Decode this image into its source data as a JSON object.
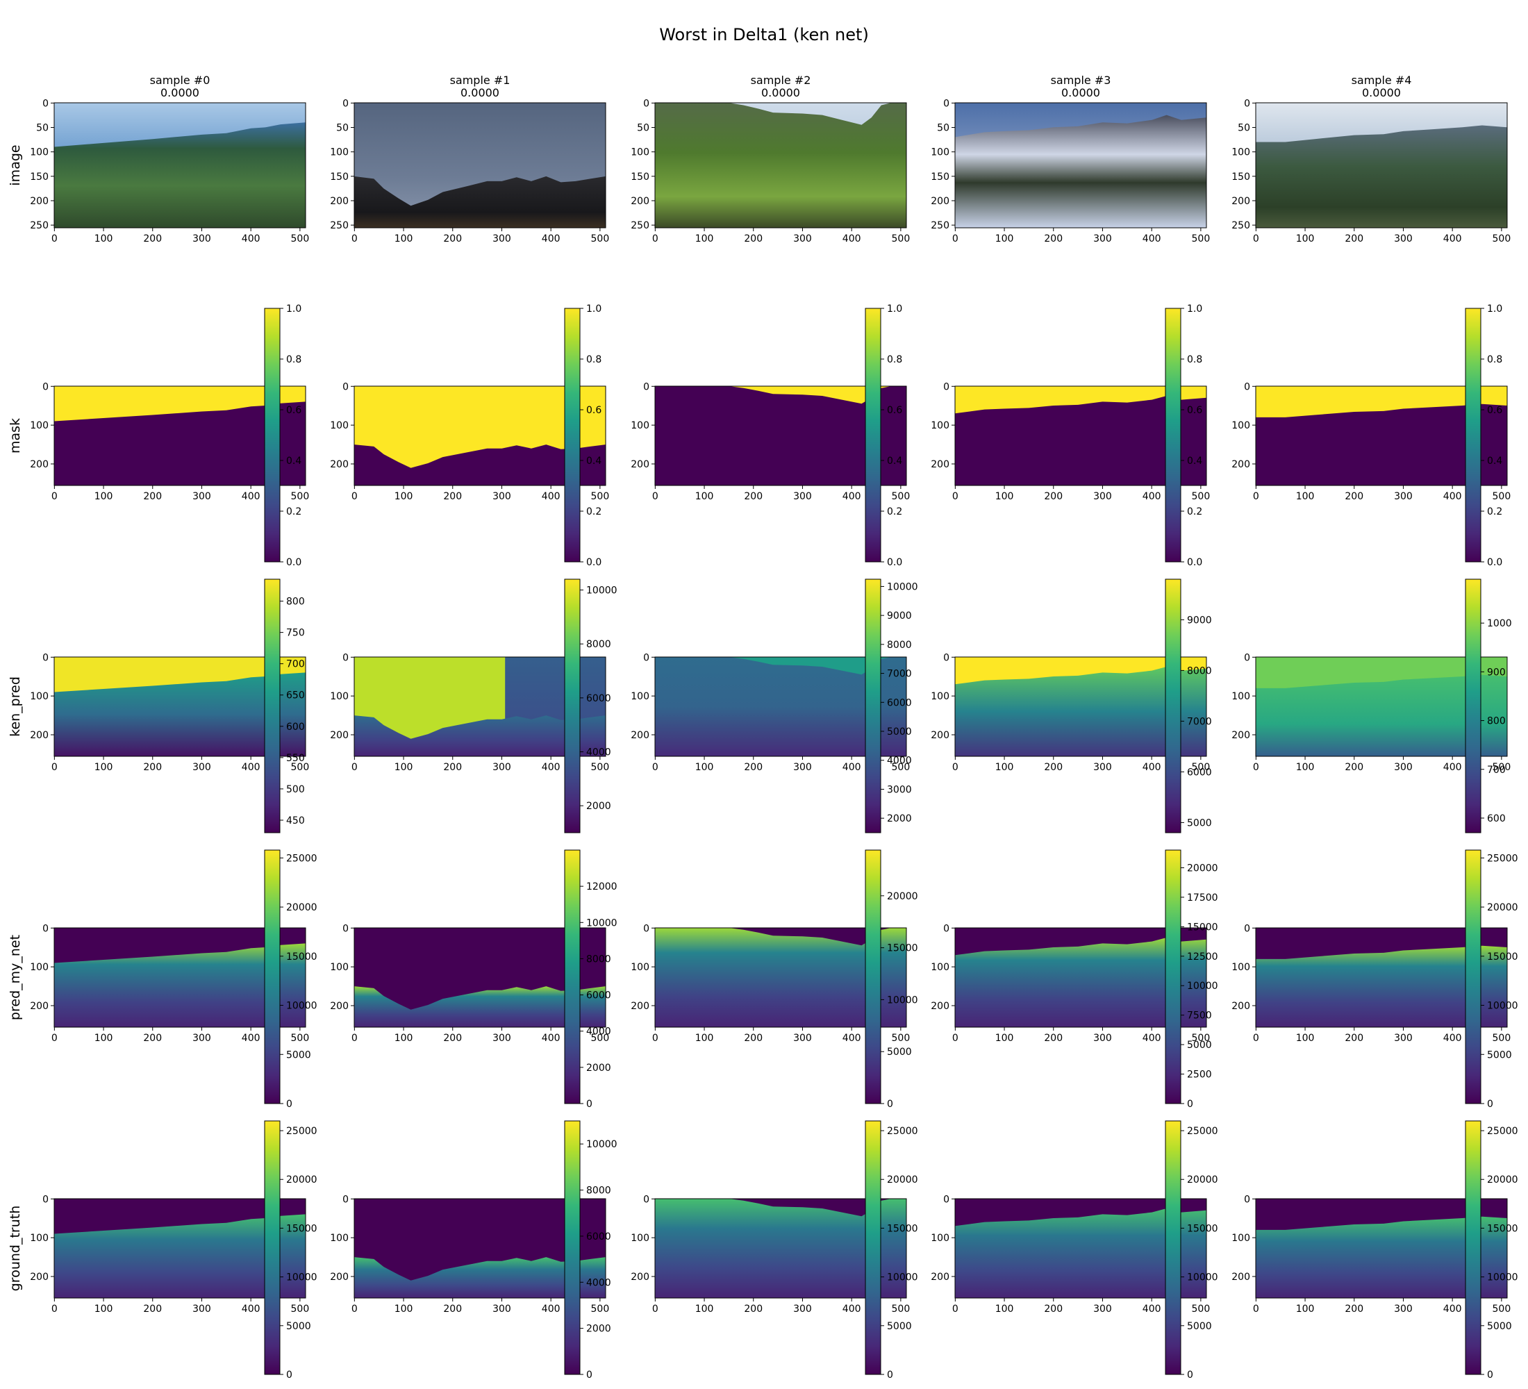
{
  "title": "Worst in Delta1 (ken net)",
  "colormap": [
    "#440154",
    "#482878",
    "#3e4989",
    "#31688e",
    "#26828e",
    "#1f9e89",
    "#35b779",
    "#6ece58",
    "#b5de2b",
    "#fde725"
  ],
  "chart_data": {
    "type": "heatmap",
    "title": "Worst in Delta1 (ken net)",
    "columns": [
      {
        "title": "sample #0",
        "metric": "0.0000"
      },
      {
        "title": "sample #1",
        "metric": "0.0000"
      },
      {
        "title": "sample #2",
        "metric": "0.0000"
      },
      {
        "title": "sample #3",
        "metric": "0.0000"
      },
      {
        "title": "sample #4",
        "metric": "0.0000"
      }
    ],
    "rows": [
      {
        "name": "image",
        "xlim": [
          0,
          511
        ],
        "ylim": [
          255,
          0
        ],
        "xticks": [
          0,
          100,
          200,
          300,
          400,
          500
        ],
        "yticks": [
          0,
          50,
          100,
          150,
          200,
          250
        ],
        "colorbar": false
      },
      {
        "name": "mask",
        "xlim": [
          0,
          511
        ],
        "ylim": [
          255,
          0
        ],
        "xticks": [
          0,
          100,
          200,
          300,
          400,
          500
        ],
        "yticks": [
          0,
          100,
          200
        ],
        "colorbar": true,
        "colorbars": [
          {
            "range": [
              0,
              1
            ],
            "ticks": [
              "0.0",
              "0.2",
              "0.4",
              "0.6",
              "0.8",
              "1.0"
            ]
          },
          {
            "range": [
              0,
              1
            ],
            "ticks": [
              "0.0",
              "0.2",
              "0.4",
              "0.6",
              "0.8",
              "1.0"
            ]
          },
          {
            "range": [
              0,
              1
            ],
            "ticks": [
              "0.0",
              "0.2",
              "0.4",
              "0.6",
              "0.8",
              "1.0"
            ]
          },
          {
            "range": [
              0,
              1
            ],
            "ticks": [
              "0.0",
              "0.2",
              "0.4",
              "0.6",
              "0.8",
              "1.0"
            ]
          },
          {
            "range": [
              0,
              1
            ],
            "ticks": [
              "0.0",
              "0.2",
              "0.4",
              "0.6",
              "0.8",
              "1.0"
            ]
          }
        ]
      },
      {
        "name": "ken_pred",
        "xlim": [
          0,
          511
        ],
        "ylim": [
          255,
          0
        ],
        "xticks": [
          0,
          100,
          200,
          300,
          400,
          500
        ],
        "yticks": [
          0,
          100,
          200
        ],
        "colorbar": true,
        "colorbars": [
          {
            "range": [
              430,
              835
            ],
            "ticks": [
              "450",
              "500",
              "550",
              "600",
              "650",
              "700",
              "750",
              "800"
            ]
          },
          {
            "range": [
              1000,
              10400
            ],
            "ticks": [
              "2000",
              "4000",
              "6000",
              "8000",
              "10000"
            ]
          },
          {
            "range": [
              1500,
              10250
            ],
            "ticks": [
              "2000",
              "3000",
              "4000",
              "5000",
              "6000",
              "7000",
              "8000",
              "9000",
              "10000"
            ]
          },
          {
            "range": [
              4800,
              9800
            ],
            "ticks": [
              "5000",
              "6000",
              "7000",
              "8000",
              "9000"
            ]
          },
          {
            "range": [
              570,
              1090
            ],
            "ticks": [
              "600",
              "700",
              "800",
              "900",
              "1000"
            ]
          }
        ]
      },
      {
        "name": "pred_my_net",
        "xlim": [
          0,
          511
        ],
        "ylim": [
          255,
          0
        ],
        "xticks": [
          0,
          100,
          200,
          300,
          400,
          500
        ],
        "yticks": [
          0,
          100,
          200
        ],
        "colorbar": true,
        "colorbars": [
          {
            "range": [
              0,
              25800
            ],
            "ticks": [
              "0",
              "5000",
              "10000",
              "15000",
              "20000",
              "25000"
            ]
          },
          {
            "range": [
              0,
              14000
            ],
            "ticks": [
              "0",
              "2000",
              "4000",
              "6000",
              "8000",
              "10000",
              "12000"
            ]
          },
          {
            "range": [
              0,
              24400
            ],
            "ticks": [
              "0",
              "5000",
              "10000",
              "15000",
              "20000"
            ]
          },
          {
            "range": [
              0,
              21500
            ],
            "ticks": [
              "0",
              "2500",
              "5000",
              "7500",
              "10000",
              "12500",
              "15000",
              "17500",
              "20000"
            ]
          },
          {
            "range": [
              0,
              25800
            ],
            "ticks": [
              "0",
              "5000",
              "10000",
              "15000",
              "20000",
              "25000"
            ]
          }
        ]
      },
      {
        "name": "ground_truth",
        "xlim": [
          0,
          511
        ],
        "ylim": [
          255,
          0
        ],
        "xticks": [
          0,
          100,
          200,
          300,
          400,
          500
        ],
        "yticks": [
          0,
          100,
          200
        ],
        "colorbar": true,
        "colorbars": [
          {
            "range": [
              0,
              26000
            ],
            "ticks": [
              "0",
              "5000",
              "10000",
              "15000",
              "20000",
              "25000"
            ]
          },
          {
            "range": [
              0,
              11000
            ],
            "ticks": [
              "0",
              "2000",
              "4000",
              "6000",
              "8000",
              "10000"
            ]
          },
          {
            "range": [
              0,
              26000
            ],
            "ticks": [
              "0",
              "5000",
              "10000",
              "15000",
              "20000",
              "25000"
            ]
          },
          {
            "range": [
              0,
              26000
            ],
            "ticks": [
              "0",
              "5000",
              "10000",
              "15000",
              "20000",
              "25000"
            ]
          },
          {
            "range": [
              0,
              26000
            ],
            "ticks": [
              "0",
              "5000",
              "10000",
              "15000",
              "20000",
              "25000"
            ]
          }
        ]
      }
    ],
    "horizons": [
      [
        [
          0,
          90
        ],
        [
          100,
          82
        ],
        [
          200,
          74
        ],
        [
          300,
          65
        ],
        [
          350,
          62
        ],
        [
          400,
          52
        ],
        [
          430,
          50
        ],
        [
          460,
          44
        ],
        [
          511,
          40
        ]
      ],
      [
        [
          0,
          150
        ],
        [
          40,
          155
        ],
        [
          60,
          175
        ],
        [
          90,
          195
        ],
        [
          115,
          210
        ],
        [
          150,
          198
        ],
        [
          180,
          182
        ],
        [
          230,
          170
        ],
        [
          270,
          160
        ],
        [
          300,
          160
        ],
        [
          330,
          152
        ],
        [
          360,
          160
        ],
        [
          390,
          150
        ],
        [
          420,
          162
        ],
        [
          450,
          160
        ],
        [
          480,
          155
        ],
        [
          511,
          150
        ]
      ],
      [
        [
          0,
          0
        ],
        [
          150,
          0
        ],
        [
          180,
          5
        ],
        [
          210,
          12
        ],
        [
          240,
          20
        ],
        [
          300,
          22
        ],
        [
          340,
          25
        ],
        [
          380,
          35
        ],
        [
          420,
          45
        ],
        [
          440,
          30
        ],
        [
          460,
          5
        ],
        [
          480,
          0
        ],
        [
          511,
          0
        ]
      ],
      [
        [
          0,
          70
        ],
        [
          30,
          65
        ],
        [
          60,
          60
        ],
        [
          100,
          58
        ],
        [
          150,
          56
        ],
        [
          200,
          50
        ],
        [
          250,
          48
        ],
        [
          300,
          40
        ],
        [
          350,
          42
        ],
        [
          400,
          35
        ],
        [
          430,
          25
        ],
        [
          460,
          35
        ],
        [
          511,
          30
        ]
      ],
      [
        [
          0,
          80
        ],
        [
          60,
          80
        ],
        [
          120,
          74
        ],
        [
          200,
          66
        ],
        [
          260,
          64
        ],
        [
          300,
          58
        ],
        [
          360,
          54
        ],
        [
          420,
          50
        ],
        [
          460,
          46
        ],
        [
          511,
          50
        ]
      ]
    ]
  }
}
